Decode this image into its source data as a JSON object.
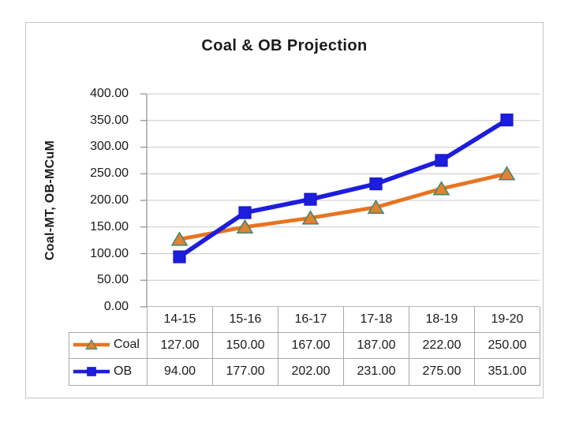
{
  "chart_data": {
    "type": "line",
    "title": "Coal & OB Projection",
    "xlabel": "",
    "ylabel": "Coal-MT, OB-MCuM",
    "categories": [
      "14-15",
      "15-16",
      "16-17",
      "17-18",
      "18-19",
      "19-20"
    ],
    "series": [
      {
        "name": "Coal",
        "color": "#e87420",
        "marker": "triangle",
        "marker_fill": "#e2812f",
        "marker_border": "#3e8a72",
        "line_width": 4.8,
        "values": [
          "127.00",
          "150.00",
          "167.00",
          "187.00",
          "222.00",
          "250.00"
        ]
      },
      {
        "name": "OB",
        "color": "#1d1ddd",
        "marker": "square",
        "marker_fill": "#1d1ddd",
        "marker_border": "#1515c4",
        "line_width": 5.6,
        "values": [
          "94.00",
          "177.00",
          "202.00",
          "231.00",
          "275.00",
          "351.00"
        ]
      }
    ],
    "y_ticks": [
      "400.00",
      "350.00",
      "300.00",
      "250.00",
      "200.00",
      "150.00",
      "100.00",
      "50.00",
      "0.00"
    ],
    "ylim": [
      0,
      400
    ],
    "grid": "horizontal",
    "legend_position": "table-left",
    "colors": {
      "gridline": "#c8c8c8",
      "axis": "#8f8f8f",
      "table_border": "#a9a9a9",
      "frame_border": "#c5c5c5",
      "text": "#1a1a1a"
    }
  }
}
